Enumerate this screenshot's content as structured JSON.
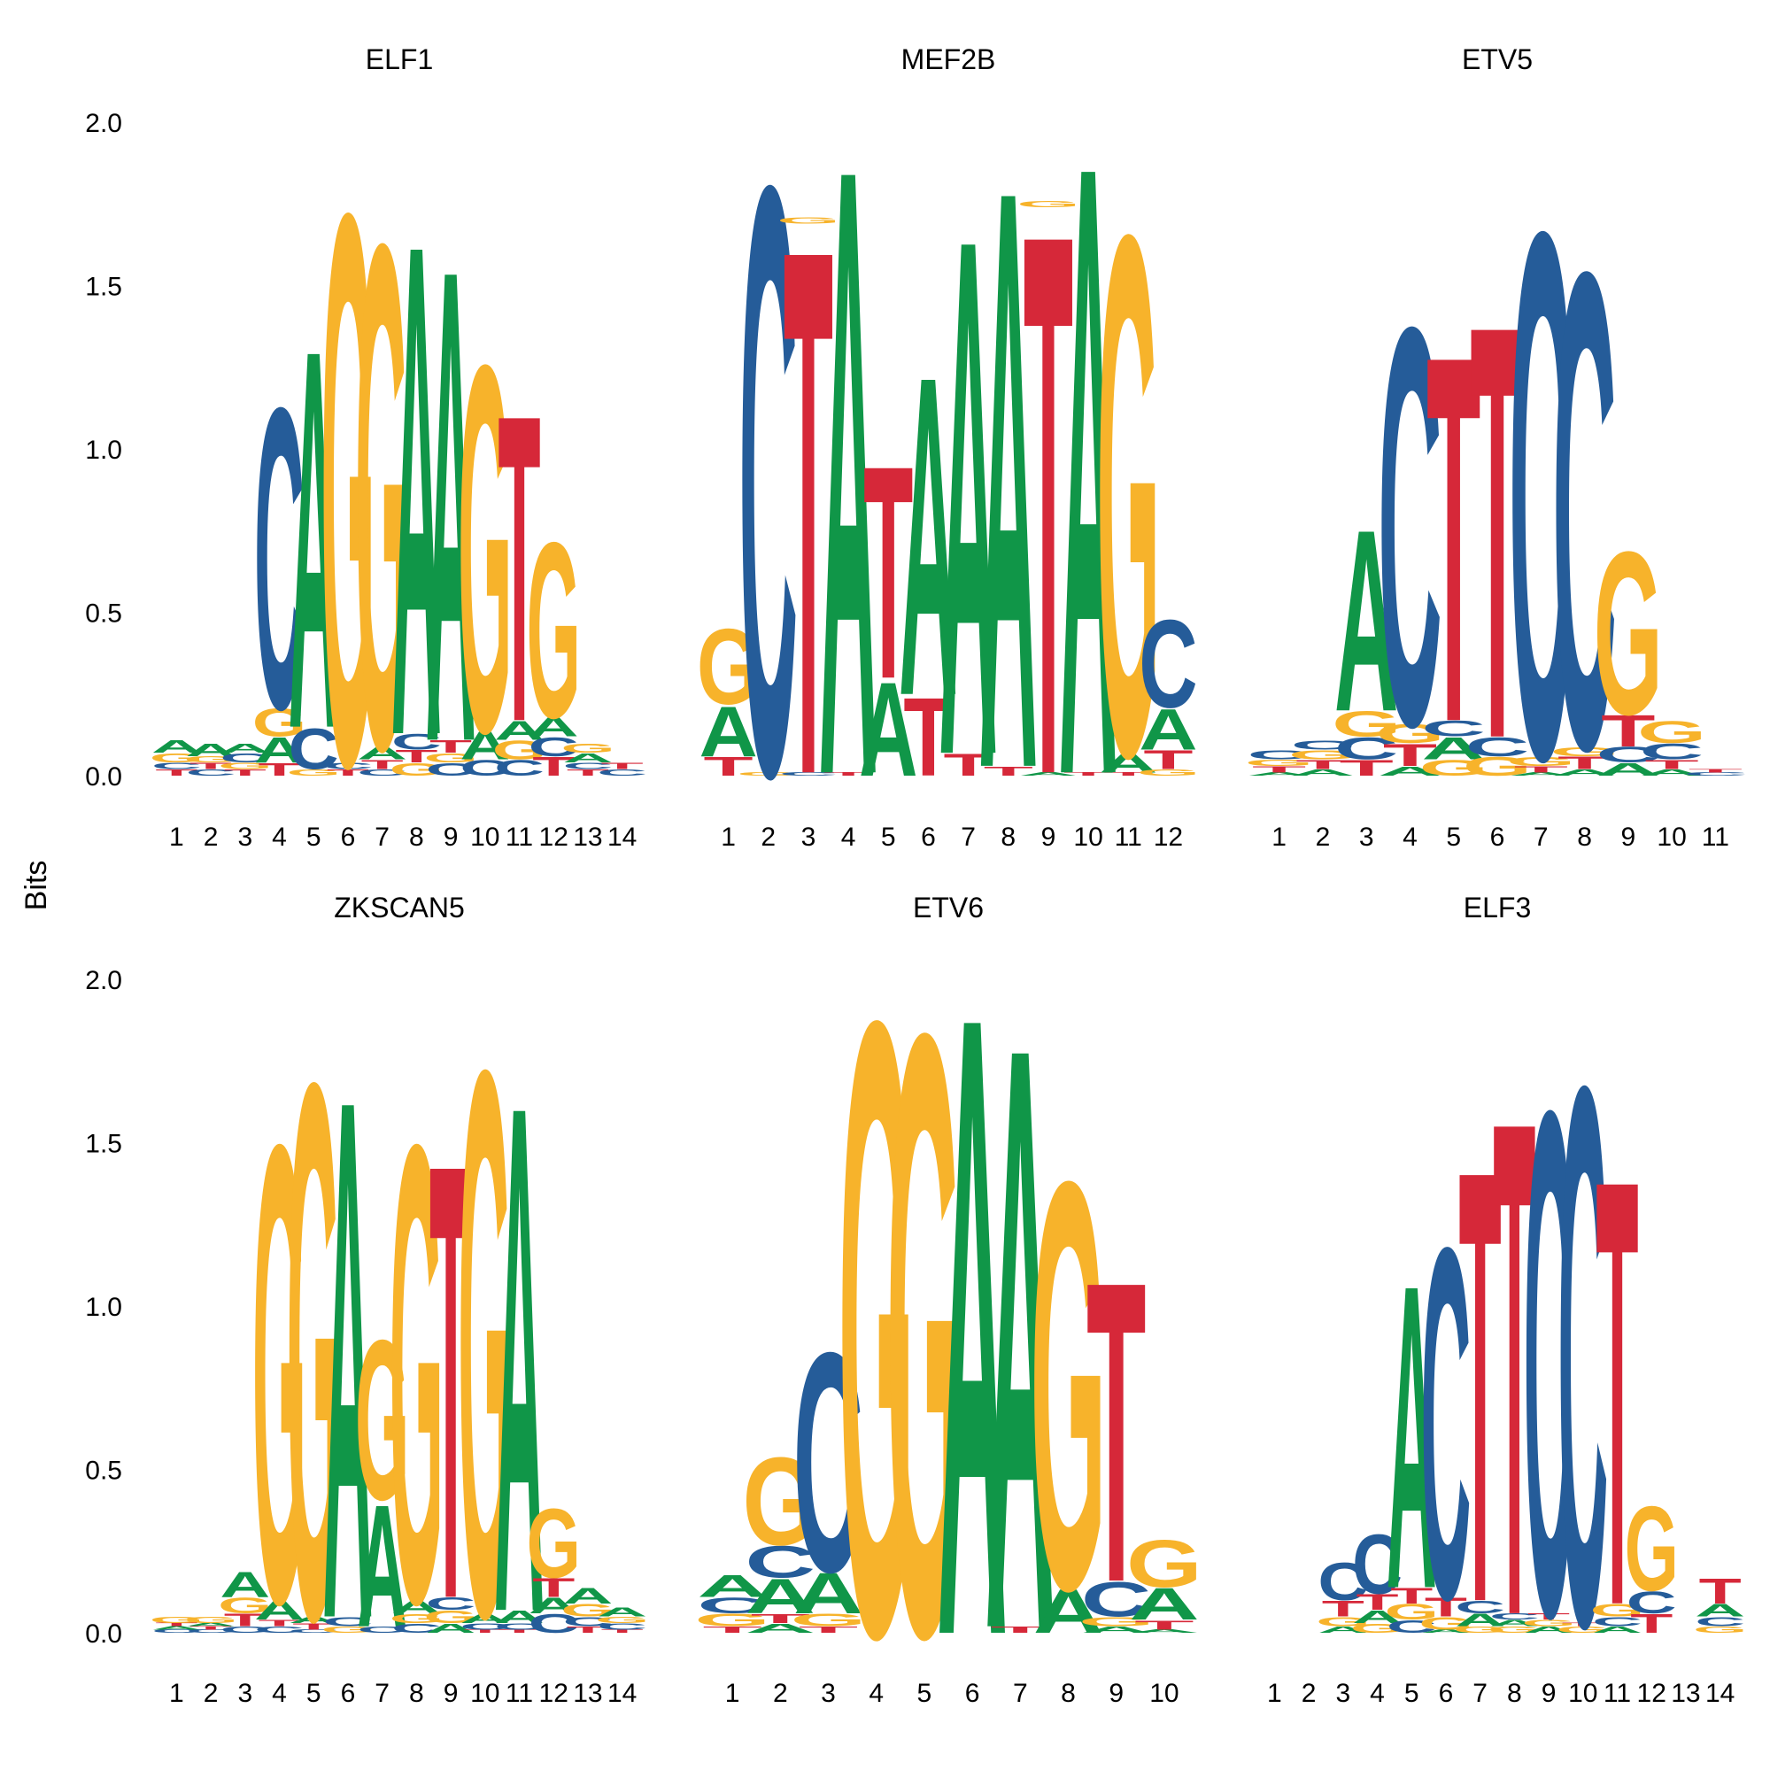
{
  "figure": {
    "ylabel": "Bits"
  },
  "colors": {
    "A": "#109648",
    "C": "#255C99",
    "G": "#F7B32B",
    "T": "#D62839"
  },
  "chart_data": [
    {
      "type": "sequence-logo",
      "title": "ELF1",
      "ylim": [
        0,
        2
      ],
      "yticks": [
        "0.0",
        "0.5",
        "1.0",
        "1.5",
        "2.0"
      ],
      "positions": [
        "1",
        "2",
        "3",
        "4",
        "5",
        "6",
        "7",
        "8",
        "9",
        "10",
        "11",
        "12",
        "13",
        "14"
      ],
      "stacks": [
        [
          [
            "T",
            0.02
          ],
          [
            "C",
            0.02
          ],
          [
            "G",
            0.03
          ],
          [
            "A",
            0.04
          ]
        ],
        [
          [
            "C",
            0.02
          ],
          [
            "T",
            0.02
          ],
          [
            "G",
            0.02
          ],
          [
            "A",
            0.04
          ]
        ],
        [
          [
            "T",
            0.02
          ],
          [
            "G",
            0.02
          ],
          [
            "C",
            0.03
          ],
          [
            "A",
            0.03
          ]
        ],
        [
          [
            "T",
            0.04
          ],
          [
            "A",
            0.08
          ],
          [
            "G",
            0.09
          ],
          [
            "C",
            0.96
          ]
        ],
        [
          [
            "G",
            0.02
          ],
          [
            "C",
            0.13
          ],
          [
            "A",
            1.21
          ]
        ],
        [
          [
            "T",
            0.02
          ],
          [
            "C",
            0.02
          ],
          [
            "G",
            1.76
          ]
        ],
        [
          [
            "C",
            0.02
          ],
          [
            "T",
            0.03
          ],
          [
            "A",
            0.04
          ],
          [
            "G",
            1.61
          ]
        ],
        [
          [
            "G",
            0.04
          ],
          [
            "T",
            0.04
          ],
          [
            "C",
            0.05
          ],
          [
            "A",
            1.57
          ]
        ],
        [
          [
            "C",
            0.04
          ],
          [
            "G",
            0.03
          ],
          [
            "T",
            0.04
          ],
          [
            "A",
            1.51
          ]
        ],
        [
          [
            "C",
            0.05
          ],
          [
            "A",
            0.09
          ],
          [
            "G",
            1.17
          ]
        ],
        [
          [
            "C",
            0.05
          ],
          [
            "G",
            0.06
          ],
          [
            "A",
            0.06
          ],
          [
            "T",
            0.98
          ]
        ],
        [
          [
            "T",
            0.06
          ],
          [
            "C",
            0.06
          ],
          [
            "A",
            0.06
          ],
          [
            "G",
            0.56
          ]
        ],
        [
          [
            "T",
            0.02
          ],
          [
            "C",
            0.02
          ],
          [
            "A",
            0.03
          ],
          [
            "G",
            0.03
          ]
        ],
        [
          [
            "C",
            0.02
          ],
          [
            "T",
            0.02
          ]
        ]
      ]
    },
    {
      "type": "sequence-logo",
      "title": "MEF2B",
      "ylim": [
        0,
        2
      ],
      "yticks": [
        "0.0",
        "0.5",
        "1.0",
        "1.5",
        "2.0"
      ],
      "positions": [
        "1",
        "2",
        "3",
        "4",
        "5",
        "6",
        "7",
        "8",
        "9",
        "10",
        "11",
        "12"
      ],
      "stacks": [
        [
          [
            "T",
            0.06
          ],
          [
            "A",
            0.16
          ],
          [
            "G",
            0.24
          ]
        ],
        [
          [
            "G",
            0.01
          ],
          [
            "C",
            1.88
          ]
        ],
        [
          [
            "C",
            0.01
          ],
          [
            "T",
            1.68
          ],
          [
            "G",
            0.02
          ]
        ],
        [
          [
            "T",
            0.01
          ],
          [
            "A",
            1.94
          ]
        ],
        [
          [
            "A",
            0.3
          ],
          [
            "T",
            0.68
          ]
        ],
        [
          [
            "T",
            0.25
          ],
          [
            "A",
            1.02
          ]
        ],
        [
          [
            "T",
            0.07
          ],
          [
            "A",
            1.65
          ]
        ],
        [
          [
            "T",
            0.03
          ],
          [
            "A",
            1.85
          ]
        ],
        [
          [
            "A",
            0.01
          ],
          [
            "T",
            1.73
          ],
          [
            "G",
            0.02
          ]
        ],
        [
          [
            "T",
            0.01
          ],
          [
            "A",
            1.95
          ]
        ],
        [
          [
            "T",
            0.01
          ],
          [
            "A",
            0.06
          ],
          [
            "G",
            1.66
          ]
        ],
        [
          [
            "G",
            0.02
          ],
          [
            "T",
            0.06
          ],
          [
            "A",
            0.13
          ],
          [
            "C",
            0.28
          ]
        ]
      ]
    },
    {
      "type": "sequence-logo",
      "title": "ETV5",
      "ylim": [
        0,
        2
      ],
      "yticks": [
        "0.0",
        "0.5",
        "1.0",
        "1.5",
        "2.0"
      ],
      "positions": [
        "1",
        "2",
        "3",
        "4",
        "5",
        "6",
        "7",
        "8",
        "9",
        "10",
        "11"
      ],
      "stacks": [
        [
          [
            "A",
            0.01
          ],
          [
            "T",
            0.02
          ],
          [
            "G",
            0.02
          ],
          [
            "C",
            0.03
          ]
        ],
        [
          [
            "A",
            0.02
          ],
          [
            "T",
            0.03
          ],
          [
            "G",
            0.03
          ],
          [
            "C",
            0.03
          ]
        ],
        [
          [
            "T",
            0.05
          ],
          [
            "C",
            0.07
          ],
          [
            "G",
            0.08
          ],
          [
            "A",
            0.58
          ]
        ],
        [
          [
            "A",
            0.03
          ],
          [
            "T",
            0.07
          ],
          [
            "G",
            0.06
          ],
          [
            "C",
            1.27
          ]
        ],
        [
          [
            "G",
            0.05
          ],
          [
            "A",
            0.07
          ],
          [
            "C",
            0.05
          ],
          [
            "T",
            1.17
          ]
        ],
        [
          [
            "G",
            0.06
          ],
          [
            "C",
            0.06
          ],
          [
            "T",
            1.32
          ]
        ],
        [
          [
            "A",
            0.01
          ],
          [
            "T",
            0.02
          ],
          [
            "G",
            0.03
          ],
          [
            "C",
            1.68
          ]
        ],
        [
          [
            "A",
            0.02
          ],
          [
            "T",
            0.04
          ],
          [
            "G",
            0.03
          ],
          [
            "C",
            1.52
          ]
        ],
        [
          [
            "A",
            0.04
          ],
          [
            "C",
            0.05
          ],
          [
            "T",
            0.1
          ],
          [
            "G",
            0.52
          ]
        ],
        [
          [
            "A",
            0.02
          ],
          [
            "T",
            0.03
          ],
          [
            "C",
            0.05
          ],
          [
            "G",
            0.07
          ]
        ],
        [
          [
            "C",
            0.01
          ],
          [
            "T",
            0.01
          ]
        ]
      ]
    },
    {
      "type": "sequence-logo",
      "title": "ZKSCAN5",
      "ylim": [
        0,
        2
      ],
      "yticks": [
        "0.0",
        "0.5",
        "1.0",
        "1.5",
        "2.0"
      ],
      "positions": [
        "1",
        "2",
        "3",
        "4",
        "5",
        "6",
        "7",
        "8",
        "9",
        "10",
        "11",
        "12",
        "13",
        "14"
      ],
      "stacks": [
        [
          [
            "C",
            0.01
          ],
          [
            "A",
            0.01
          ],
          [
            "T",
            0.01
          ],
          [
            "G",
            0.02
          ]
        ],
        [
          [
            "C",
            0.01
          ],
          [
            "T",
            0.01
          ],
          [
            "A",
            0.01
          ],
          [
            "G",
            0.02
          ]
        ],
        [
          [
            "C",
            0.02
          ],
          [
            "T",
            0.04
          ],
          [
            "G",
            0.05
          ],
          [
            "A",
            0.08
          ]
        ],
        [
          [
            "C",
            0.02
          ],
          [
            "T",
            0.02
          ],
          [
            "A",
            0.06
          ],
          [
            "G",
            1.46
          ]
        ],
        [
          [
            "C",
            0.01
          ],
          [
            "T",
            0.02
          ],
          [
            "A",
            0.02
          ],
          [
            "G",
            1.71
          ]
        ],
        [
          [
            "G",
            0.02
          ],
          [
            "C",
            0.03
          ],
          [
            "A",
            1.66
          ]
        ],
        [
          [
            "C",
            0.02
          ],
          [
            "A",
            0.39
          ],
          [
            "G",
            0.51
          ]
        ],
        [
          [
            "C",
            0.03
          ],
          [
            "G",
            0.03
          ],
          [
            "A",
            0.04
          ],
          [
            "G",
            1.46
          ]
        ],
        [
          [
            "A",
            0.03
          ],
          [
            "G",
            0.04
          ],
          [
            "C",
            0.04
          ],
          [
            "T",
            1.39
          ]
        ],
        [
          [
            "T",
            0.01
          ],
          [
            "C",
            0.02
          ],
          [
            "A",
            0.03
          ],
          [
            "G",
            1.74
          ]
        ],
        [
          [
            "T",
            0.01
          ],
          [
            "C",
            0.02
          ],
          [
            "A",
            0.04
          ],
          [
            "A",
            1.62
          ]
        ],
        [
          [
            "C",
            0.06
          ],
          [
            "A",
            0.05
          ],
          [
            "T",
            0.06
          ],
          [
            "G",
            0.22
          ]
        ],
        [
          [
            "T",
            0.02
          ],
          [
            "C",
            0.03
          ],
          [
            "G",
            0.04
          ],
          [
            "A",
            0.05
          ]
        ],
        [
          [
            "T",
            0.01
          ],
          [
            "C",
            0.02
          ],
          [
            "G",
            0.02
          ],
          [
            "A",
            0.03
          ]
        ]
      ]
    },
    {
      "type": "sequence-logo",
      "title": "ETV6",
      "ylim": [
        0,
        2
      ],
      "yticks": [
        "0.0",
        "0.5",
        "1.0",
        "1.5",
        "2.0"
      ],
      "positions": [
        "1",
        "2",
        "3",
        "4",
        "5",
        "6",
        "7",
        "8",
        "9",
        "10"
      ],
      "stacks": [
        [
          [
            "T",
            0.02
          ],
          [
            "G",
            0.04
          ],
          [
            "C",
            0.05
          ],
          [
            "A",
            0.07
          ]
        ],
        [
          [
            "A",
            0.03
          ],
          [
            "T",
            0.03
          ],
          [
            "A",
            0.11
          ],
          [
            "C",
            0.1
          ],
          [
            "G",
            0.28
          ]
        ],
        [
          [
            "T",
            0.02
          ],
          [
            "G",
            0.04
          ],
          [
            "A",
            0.13
          ],
          [
            "C",
            0.7
          ]
        ],
        [
          [
            "G",
            1.96
          ]
        ],
        [
          [
            "G",
            1.92
          ]
        ],
        [
          [
            "A",
            1.98
          ]
        ],
        [
          [
            "T",
            0.02
          ],
          [
            "A",
            1.86
          ]
        ],
        [
          [
            "A",
            0.14
          ],
          [
            "G",
            1.3
          ]
        ],
        [
          [
            "A",
            0.02
          ],
          [
            "G",
            0.03
          ],
          [
            "C",
            0.11
          ],
          [
            "T",
            0.96
          ]
        ],
        [
          [
            "A",
            0.01
          ],
          [
            "T",
            0.03
          ],
          [
            "A",
            0.1
          ],
          [
            "G",
            0.15
          ]
        ]
      ]
    },
    {
      "type": "sequence-logo",
      "title": "ELF3",
      "ylim": [
        0,
        2
      ],
      "yticks": [
        "0.0",
        "0.5",
        "1.0",
        "1.5",
        "2.0"
      ],
      "positions": [
        "1",
        "2",
        "3",
        "4",
        "5",
        "6",
        "7",
        "8",
        "9",
        "10",
        "11",
        "12",
        "13",
        "14"
      ],
      "stacks": [
        [],
        [],
        [
          [
            "A",
            0.02
          ],
          [
            "G",
            0.03
          ],
          [
            "T",
            0.05
          ],
          [
            "C",
            0.12
          ]
        ],
        [
          [
            "G",
            0.03
          ],
          [
            "A",
            0.04
          ],
          [
            "T",
            0.05
          ],
          [
            "C",
            0.19
          ]
        ],
        [
          [
            "C",
            0.04
          ],
          [
            "G",
            0.05
          ],
          [
            "T",
            0.05
          ],
          [
            "A",
            0.97
          ]
        ],
        [
          [
            "A",
            0.01
          ],
          [
            "G",
            0.04
          ],
          [
            "T",
            0.06
          ],
          [
            "C",
            1.12
          ]
        ],
        [
          [
            "G",
            0.02
          ],
          [
            "A",
            0.04
          ],
          [
            "C",
            0.04
          ],
          [
            "T",
            1.38
          ]
        ],
        [
          [
            "G",
            0.02
          ],
          [
            "A",
            0.02
          ],
          [
            "C",
            0.02
          ],
          [
            "T",
            1.58
          ]
        ],
        [
          [
            "A",
            0.02
          ],
          [
            "G",
            0.02
          ],
          [
            "T",
            0.02
          ],
          [
            "C",
            1.61
          ]
        ],
        [
          [
            "G",
            0.02
          ],
          [
            "T",
            0.01
          ],
          [
            "C",
            1.72
          ]
        ],
        [
          [
            "A",
            0.02
          ],
          [
            "C",
            0.03
          ],
          [
            "G",
            0.04
          ],
          [
            "T",
            1.36
          ]
        ],
        [
          [
            "T",
            0.06
          ],
          [
            "C",
            0.07
          ],
          [
            "G",
            0.27
          ]
        ],
        [],
        [
          [
            "G",
            0.02
          ],
          [
            "C",
            0.03
          ],
          [
            "A",
            0.04
          ],
          [
            "T",
            0.08
          ]
        ]
      ]
    }
  ]
}
